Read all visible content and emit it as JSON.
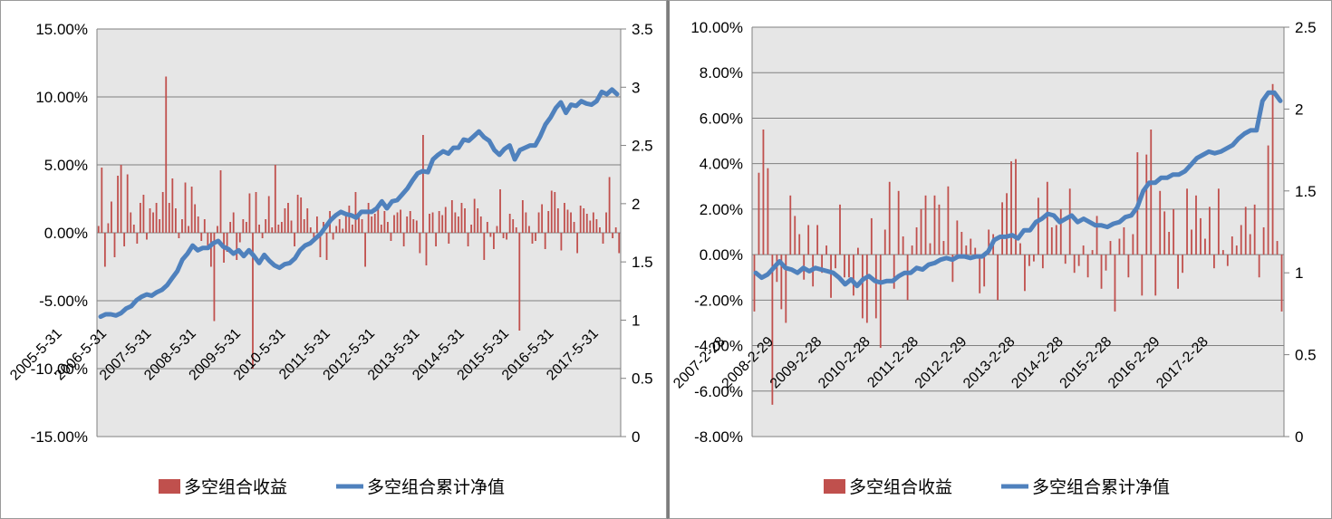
{
  "chart_data": [
    {
      "type": "bar",
      "title": "",
      "colors": {
        "bar": "#C0504D",
        "line": "#4F81BD",
        "plot_bg": "#E6E6E6",
        "grid": "#808080"
      },
      "legend": {
        "position": "bottom",
        "entries": [
          "多空组合收益",
          "多空组合累计净值"
        ]
      },
      "grid": true,
      "y_left": {
        "ticks": [
          "15.00%",
          "10.00%",
          "5.00%",
          "0.00%",
          "-5.00%",
          "-10.00%",
          "-15.00%"
        ],
        "range": [
          -0.15,
          0.15
        ]
      },
      "y_right": {
        "ticks": [
          "3.5",
          "3",
          "2.5",
          "2",
          "1.5",
          "1",
          "0.5",
          "0"
        ],
        "range": [
          0,
          3.5
        ]
      },
      "x_ticks": [
        "2005-5-31",
        "2006-5-31",
        "2007-5-31",
        "2008-5-31",
        "2009-5-31",
        "2010-5-31",
        "2011-5-31",
        "2012-5-31",
        "2013-5-31",
        "2014-5-31",
        "2015-5-31",
        "2016-5-31",
        "2017-5-31"
      ],
      "series": [
        {
          "name": "多空组合收益",
          "type": "bar",
          "axis": "left",
          "values": [
            0.005,
            0.048,
            -0.025,
            0.007,
            0.023,
            -0.018,
            0.042,
            0.05,
            -0.01,
            0.043,
            0.015,
            0.006,
            -0.008,
            0.022,
            0.028,
            -0.005,
            0.018,
            0.015,
            0.022,
            0.01,
            0.03,
            0.115,
            0.022,
            0.04,
            0.018,
            -0.004,
            0.01,
            0.037,
            0.005,
            0.034,
            0.021,
            0.012,
            -0.006,
            0.01,
            -0.012,
            -0.025,
            -0.065,
            0.005,
            0.046,
            -0.022,
            -0.014,
            0.008,
            0.015,
            -0.02,
            -0.007,
            0.01,
            0.008,
            0.029,
            -0.1,
            0.03,
            0.006,
            -0.004,
            0.01,
            0.027,
            0.004,
            0.05,
            0.006,
            0.008,
            0.018,
            0.022,
            0.009,
            -0.01,
            0.028,
            0.026,
            0.01,
            0.018,
            0.004,
            -0.004,
            0.012,
            -0.018,
            0.008,
            -0.02,
            0.016,
            -0.005,
            0.005,
            0.01,
            0.003,
            0.015,
            0.02,
            0.006,
            0.03,
            0.014,
            0.01,
            -0.025,
            0.022,
            0.012,
            0.014,
            0.02,
            0.006,
            0.016,
            0.008,
            -0.006,
            0.013,
            0.015,
            0.017,
            -0.01,
            0.012,
            0.016,
            0.01,
            0.009,
            -0.015,
            0.072,
            -0.024,
            0.014,
            0.015,
            -0.01,
            0.016,
            0.013,
            0.019,
            -0.008,
            0.024,
            0.015,
            0.012,
            0.022,
            0.018,
            -0.01,
            0.006,
            0.025,
            0.018,
            0.012,
            -0.02,
            0.008,
            -0.003,
            -0.012,
            0.005,
            0.032,
            -0.004,
            -0.005,
            0.014,
            0.01,
            0.004,
            -0.072,
            0.024,
            0.015,
            0.005,
            -0.008,
            -0.006,
            0.015,
            0.021,
            -0.012,
            0.016,
            0.031,
            0.03,
            0.018,
            -0.013,
            0.022,
            0.017,
            0.015,
            0.008,
            -0.015,
            0.02,
            0.018,
            0.014,
            0.009,
            0.015,
            0.01,
            0.004,
            -0.008,
            0.015,
            0.041,
            -0.004,
            0.004,
            -0.015
          ]
        },
        {
          "name": "多空组合累计净值",
          "type": "line",
          "axis": "right",
          "values": [
            1.03,
            1.05,
            1.05,
            1.04,
            1.06,
            1.1,
            1.12,
            1.17,
            1.2,
            1.22,
            1.21,
            1.24,
            1.26,
            1.3,
            1.36,
            1.42,
            1.52,
            1.57,
            1.64,
            1.6,
            1.62,
            1.62,
            1.66,
            1.68,
            1.63,
            1.61,
            1.57,
            1.6,
            1.55,
            1.6,
            1.55,
            1.49,
            1.56,
            1.51,
            1.47,
            1.45,
            1.48,
            1.49,
            1.53,
            1.6,
            1.64,
            1.66,
            1.7,
            1.74,
            1.8,
            1.86,
            1.9,
            1.93,
            1.91,
            1.9,
            1.88,
            1.93,
            1.93,
            1.93,
            1.96,
            2.02,
            1.96,
            2.02,
            2.03,
            2.08,
            2.13,
            2.2,
            2.26,
            2.28,
            2.27,
            2.38,
            2.42,
            2.45,
            2.43,
            2.48,
            2.48,
            2.55,
            2.54,
            2.58,
            2.62,
            2.57,
            2.54,
            2.46,
            2.42,
            2.47,
            2.5,
            2.38,
            2.46,
            2.48,
            2.5,
            2.5,
            2.58,
            2.68,
            2.74,
            2.82,
            2.87,
            2.78,
            2.85,
            2.84,
            2.88,
            2.86,
            2.85,
            2.88,
            2.96,
            2.94,
            2.98,
            2.94
          ]
        }
      ]
    },
    {
      "type": "bar",
      "title": "",
      "colors": {
        "bar": "#C0504D",
        "line": "#4F81BD",
        "plot_bg": "#E6E6E6",
        "grid": "#808080"
      },
      "legend": {
        "position": "bottom",
        "entries": [
          "多空组合收益",
          "多空组合累计净值"
        ]
      },
      "grid": true,
      "y_left": {
        "ticks": [
          "10.00%",
          "8.00%",
          "6.00%",
          "4.00%",
          "2.00%",
          "0.00%",
          "-2.00%",
          "-4.00%",
          "-6.00%",
          "-8.00%"
        ],
        "range": [
          -0.08,
          0.1
        ]
      },
      "y_right": {
        "ticks": [
          "2.5",
          "2",
          "1.5",
          "1",
          "0.5",
          "0"
        ],
        "range": [
          0,
          2.5
        ]
      },
      "x_ticks": [
        "2007-2-28",
        "2008-2-29",
        "2009-2-28",
        "2010-2-28",
        "2011-2-28",
        "2012-2-29",
        "2013-2-28",
        "2014-2-28",
        "2015-2-28",
        "2016-2-29",
        "2017-2-28"
      ],
      "series": [
        {
          "name": "多空组合收益",
          "type": "bar",
          "axis": "left",
          "values": [
            -0.025,
            0.036,
            0.055,
            0.038,
            -0.066,
            -0.012,
            -0.024,
            -0.03,
            0.026,
            0.017,
            0.009,
            -0.011,
            0.013,
            -0.014,
            0.013,
            -0.008,
            0.004,
            -0.019,
            -0.006,
            0.022,
            -0.01,
            -0.01,
            -0.018,
            0.003,
            -0.028,
            -0.03,
            0.016,
            -0.028,
            -0.041,
            0.011,
            0.032,
            -0.015,
            0.028,
            0.008,
            -0.02,
            0.004,
            0.012,
            0.02,
            0.026,
            0.005,
            0.026,
            0.022,
            0.006,
            0.03,
            -0.012,
            0.015,
            0.01,
            0.004,
            0.007,
            0.003,
            -0.017,
            -0.014,
            0.011,
            0.009,
            -0.02,
            0.023,
            0.027,
            0.041,
            0.042,
            0.005,
            -0.016,
            -0.005,
            -0.003,
            0.025,
            -0.006,
            0.032,
            0.012,
            0.013,
            0.02,
            -0.004,
            0.029,
            -0.008,
            -0.005,
            0.004,
            -0.01,
            0.002,
            0.017,
            -0.015,
            -0.007,
            0.006,
            -0.025,
            0.007,
            0.012,
            -0.01,
            0.009,
            0.045,
            -0.018,
            0.044,
            0.055,
            -0.018,
            0.028,
            0.019,
            0.01,
            0.02,
            -0.015,
            -0.008,
            0.029,
            0.011,
            0.026,
            0.016,
            0.007,
            0.021,
            -0.006,
            0.029,
            0.002,
            -0.005,
            0.008,
            0.004,
            0.013,
            0.021,
            0.009,
            0.022,
            -0.01,
            0.012,
            0.048,
            0.075,
            0.006,
            -0.025
          ]
        },
        {
          "name": "多空组合累计净值",
          "type": "line",
          "axis": "right",
          "values": [
            1.0,
            0.97,
            0.99,
            1.03,
            1.07,
            1.03,
            1.02,
            1.0,
            1.03,
            1.01,
            1.03,
            1.02,
            1.01,
            1.0,
            0.97,
            0.93,
            0.96,
            0.92,
            0.96,
            0.98,
            0.95,
            0.94,
            0.95,
            0.95,
            0.98,
            1.0,
            1.0,
            1.03,
            1.02,
            1.05,
            1.06,
            1.08,
            1.09,
            1.08,
            1.1,
            1.1,
            1.09,
            1.1,
            1.1,
            1.13,
            1.2,
            1.22,
            1.22,
            1.23,
            1.21,
            1.26,
            1.26,
            1.31,
            1.33,
            1.36,
            1.35,
            1.31,
            1.33,
            1.35,
            1.31,
            1.33,
            1.31,
            1.29,
            1.29,
            1.28,
            1.3,
            1.31,
            1.34,
            1.35,
            1.4,
            1.5,
            1.55,
            1.55,
            1.58,
            1.58,
            1.6,
            1.6,
            1.62,
            1.66,
            1.7,
            1.72,
            1.74,
            1.73,
            1.74,
            1.76,
            1.78,
            1.82,
            1.85,
            1.87,
            1.87,
            2.05,
            2.1,
            2.1,
            2.05
          ]
        }
      ]
    }
  ]
}
